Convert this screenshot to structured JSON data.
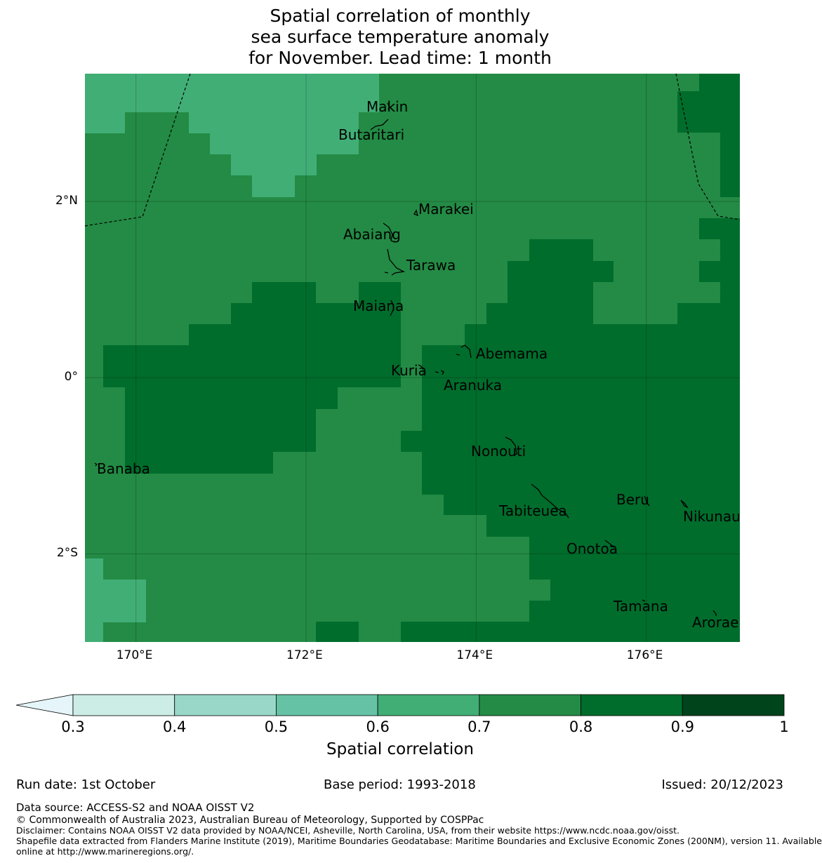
{
  "title": {
    "line1": "Spatial correlation of monthly",
    "line2": "sea surface temperature anomaly",
    "line3": "for November. Lead time: 1 month"
  },
  "map": {
    "lon_range": [
      169.4,
      177.1
    ],
    "lat_range": [
      -3.0,
      3.45
    ],
    "lon_ticks": [
      {
        "lon": 170,
        "label": "170°E"
      },
      {
        "lon": 172,
        "label": "172°E"
      },
      {
        "lon": 174,
        "label": "174°E"
      },
      {
        "lon": 176,
        "label": "176°E"
      }
    ],
    "lat_ticks": [
      {
        "lat": 2,
        "label": "2°N"
      },
      {
        "lat": 0,
        "label": "0°"
      },
      {
        "lat": -2,
        "label": "2°S"
      }
    ],
    "places": [
      {
        "name": "Makin",
        "lon": 173.0,
        "lat": 3.15
      },
      {
        "name": "Butaritari",
        "lon": 172.8,
        "lat": 2.85
      },
      {
        "name": "Marakei",
        "lon": 173.3,
        "lat": 2.0
      },
      {
        "name": "Abaiang",
        "lon": 172.9,
        "lat": 1.85
      },
      {
        "name": "Tarawa",
        "lon": 173.0,
        "lat": 1.4
      },
      {
        "name": "Maiana",
        "lon": 173.0,
        "lat": 0.95
      },
      {
        "name": "Abemama",
        "lon": 173.9,
        "lat": 0.4
      },
      {
        "name": "Kuria",
        "lon": 173.4,
        "lat": 0.2
      },
      {
        "name": "Aranuka",
        "lon": 173.6,
        "lat": 0.15
      },
      {
        "name": "Nonouti",
        "lon": 174.4,
        "lat": -0.65
      },
      {
        "name": "Banaba",
        "lon": 169.5,
        "lat": -0.85
      },
      {
        "name": "Tabiteuea",
        "lon": 174.75,
        "lat": -1.25
      },
      {
        "name": "Beru",
        "lon": 176.0,
        "lat": -1.35
      },
      {
        "name": "Nikunau",
        "lon": 176.45,
        "lat": -1.35
      },
      {
        "name": "Onotoa",
        "lon": 175.55,
        "lat": -1.85
      },
      {
        "name": "Tamana",
        "lon": 175.95,
        "lat": -2.5
      },
      {
        "name": "Arorae",
        "lon": 176.8,
        "lat": -2.65
      }
    ]
  },
  "colorbar": {
    "label": "Spatial correlation",
    "levels": [
      {
        "from": 0.3,
        "to": 0.4,
        "color": "#ccece6"
      },
      {
        "from": 0.4,
        "to": 0.5,
        "color": "#99d8c9"
      },
      {
        "from": 0.5,
        "to": 0.6,
        "color": "#66c2a4"
      },
      {
        "from": 0.6,
        "to": 0.7,
        "color": "#41ae76"
      },
      {
        "from": 0.7,
        "to": 0.8,
        "color": "#238b45"
      },
      {
        "from": 0.8,
        "to": 0.9,
        "color": "#006d2c"
      },
      {
        "from": 0.9,
        "to": 1.0,
        "color": "#00441b"
      }
    ],
    "under_color": "#e5f5f9",
    "ticks": [
      "0.3",
      "0.4",
      "0.5",
      "0.6",
      "0.7",
      "0.8",
      "0.9",
      "1"
    ]
  },
  "footer": {
    "run_date": "Run date: 1st October",
    "base_period": "Base period: 1993-2018",
    "issued": "Issued: 20/12/2023",
    "data_source": "Data source: ACCESS-S2 and NOAA OISST V2",
    "copyright": "© Commonwealth of Australia 2023, Australian Bureau of Meteorology, Supported by COSPPac",
    "disclaimer": "Disclaimer: Contains NOAA OISST V2 data provided by NOAA/NCEI, Asheville, North Carolina, USA, from their website https://www.ncdc.noaa.gov/oisst.",
    "shapefile1": "Shapefile data extracted from Flanders Marine Institute (2019), Maritime Boundaries Geodatabase: Maritime Boundaries and Exclusive Economic Zones (200NM), version 11. Available",
    "shapefile2": "online at http://www.marineregions.org/."
  }
}
